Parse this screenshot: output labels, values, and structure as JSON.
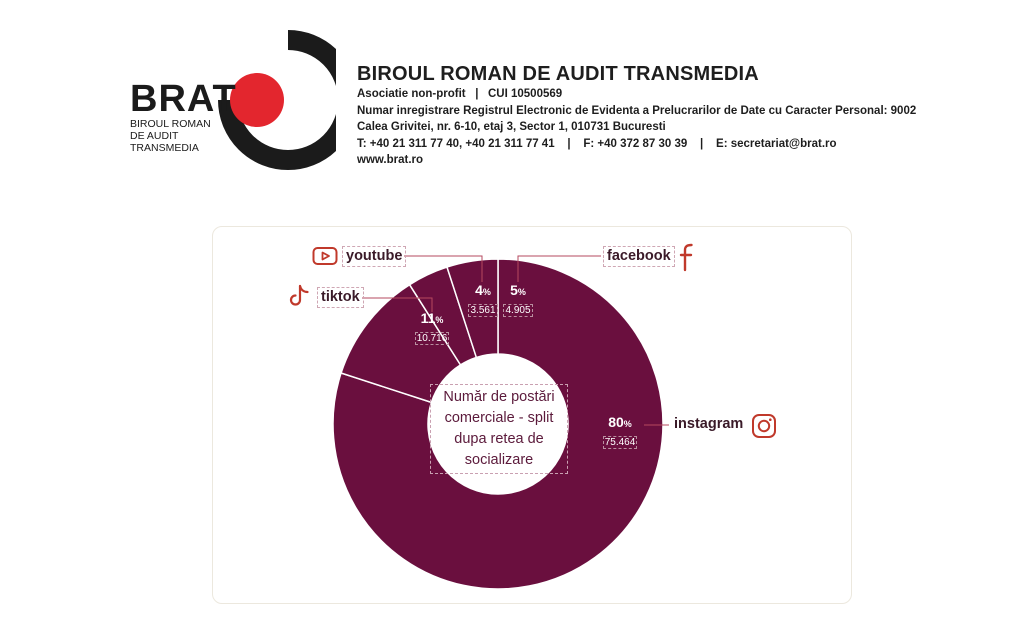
{
  "logo": {
    "word": "BRAT",
    "sub_lines": [
      "BIROUL ROMAN",
      "DE AUDIT",
      "TRANSMEDIA"
    ],
    "ring_color": "#1b1b1b",
    "dot_color": "#e3262e"
  },
  "header": {
    "title": "BIROUL ROMAN DE AUDIT TRANSMEDIA",
    "lines": [
      "Asociatie non-profit   |   CUI 10500569",
      "Numar inregistrare Registrul Electronic de Evidenta a Prelucrarilor de Date cu Caracter Personal: 9002",
      "Calea Grivitei, nr. 6-10, etaj 3, Sector 1, 010731 Bucuresti",
      "T: +40 21 311 77 40, +40 21 311 77 41    |    F: +40 372 87 30 39    |    E: secretariat@brat.ro",
      "www.brat.ro"
    ]
  },
  "chart_data": {
    "type": "pie",
    "title": "Număr de postări comerciale - split dupa retea de socializare",
    "center_text": "Număr de postări comerciale - split dupa retea de socializare",
    "slices": [
      {
        "name": "instagram",
        "percent": 80,
        "value": "75.464",
        "icon": "instagram-icon"
      },
      {
        "name": "tiktok",
        "percent": 11,
        "value": "10.716",
        "icon": "tiktok-icon"
      },
      {
        "name": "youtube",
        "percent": 4,
        "value": "3.561",
        "icon": "youtube-icon"
      },
      {
        "name": "facebook",
        "percent": 5,
        "value": "4.905",
        "icon": "facebook-icon"
      }
    ],
    "pct_suffix": "%",
    "colors": {
      "slice": "#6a0f3e",
      "separator": "#ffffff",
      "label_text": "#3a1a28",
      "icon": "#c0392b"
    }
  }
}
